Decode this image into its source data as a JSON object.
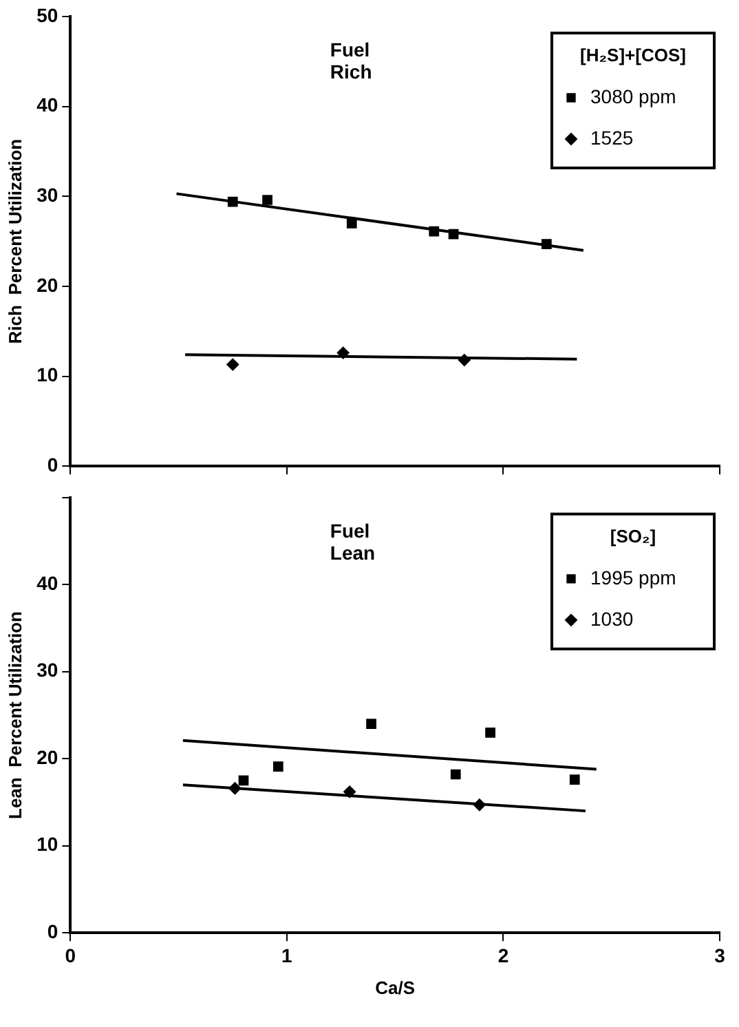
{
  "chart_data": [
    {
      "type": "scatter",
      "ylabel": "Rich  Percent Utilization",
      "legend_title": "[H₂S]+[COS]",
      "annotations": [
        "Fuel Rich"
      ],
      "xlim": [
        0,
        3
      ],
      "xticks": [
        0,
        1,
        2,
        3
      ],
      "ylim": [
        0,
        50
      ],
      "yticks": [
        0,
        10,
        20,
        30,
        40,
        50
      ],
      "tick_labels": "y",
      "grid": false,
      "legend": "top right",
      "series": [
        {
          "name": "3080 ppm",
          "color": "#000000",
          "marker": "square",
          "x": [
            0.75,
            0.91,
            1.3,
            1.68,
            1.77,
            2.2
          ],
          "values": [
            29.4,
            29.6,
            27.0,
            26.1,
            25.8,
            24.7
          ]
        },
        {
          "name": "1525",
          "color": "#000000",
          "marker": "diamond",
          "x": [
            0.75,
            1.26,
            1.82
          ],
          "values": [
            11.3,
            12.6,
            11.8
          ]
        },
        {
          "type": "line",
          "color": "#000000",
          "marker": "none",
          "line_style": "solid",
          "x": [
            0.49,
            2.37
          ],
          "values": [
            30.3,
            24.0
          ]
        },
        {
          "type": "line",
          "color": "#000000",
          "marker": "none",
          "line_style": "solid",
          "x": [
            0.53,
            2.34
          ],
          "values": [
            12.4,
            11.9
          ]
        }
      ]
    },
    {
      "type": "scatter",
      "xlabel": "Ca/S",
      "ylabel": "Lean  Percent Utilization",
      "legend_title": "[SO₂]",
      "annotations": [
        "Fuel Lean"
      ],
      "xlim": [
        0,
        3
      ],
      "xticks": [
        0,
        1,
        2,
        3
      ],
      "ylim": [
        0,
        50
      ],
      "yticks": [
        0,
        10,
        20,
        30,
        40,
        {
          "value": 50,
          "label": null
        }
      ],
      "grid": false,
      "legend": "top right",
      "series": [
        {
          "name": "1995 ppm",
          "color": "#000000",
          "marker": "square",
          "x": [
            0.8,
            0.96,
            1.39,
            1.78,
            1.94,
            2.33
          ],
          "values": [
            17.5,
            19.1,
            24.0,
            18.2,
            23.0,
            17.6
          ]
        },
        {
          "name": "1030",
          "color": "#000000",
          "marker": "diamond",
          "x": [
            0.76,
            1.29,
            1.89
          ],
          "values": [
            16.6,
            16.2,
            14.7
          ]
        },
        {
          "type": "line",
          "color": "#000000",
          "marker": "none",
          "line_style": "solid",
          "x": [
            0.52,
            2.43
          ],
          "values": [
            22.1,
            18.8
          ]
        },
        {
          "type": "line",
          "color": "#000000",
          "marker": "none",
          "line_style": "solid",
          "x": [
            0.52,
            2.38
          ],
          "values": [
            17.0,
            14.0
          ]
        }
      ]
    }
  ]
}
